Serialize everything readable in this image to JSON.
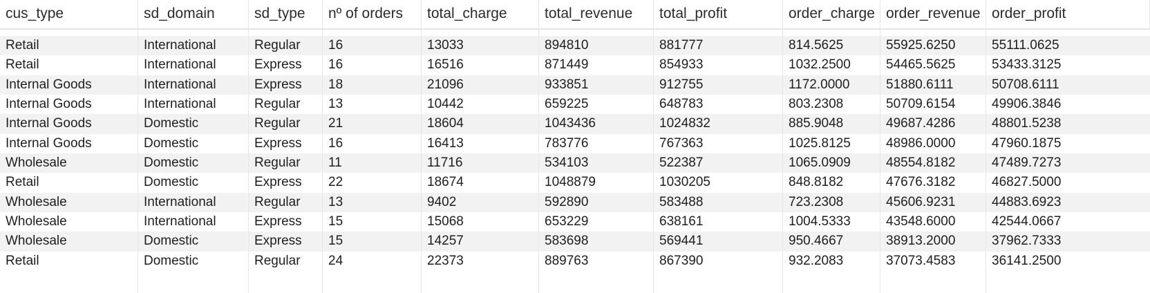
{
  "table": {
    "columns": [
      "cus_type",
      "sd_domain",
      "sd_type",
      "nº of orders",
      "total_charge",
      "total_revenue",
      "total_profit",
      "order_charge",
      "order_revenue",
      "order_profit"
    ],
    "rows": [
      [
        "Retail",
        "International",
        "Regular",
        "16",
        "13033",
        "894810",
        "881777",
        "814.5625",
        "55925.6250",
        "55111.0625"
      ],
      [
        "Retail",
        "International",
        "Express",
        "16",
        "16516",
        "871449",
        "854933",
        "1032.2500",
        "54465.5625",
        "53433.3125"
      ],
      [
        "Internal Goods",
        "International",
        "Express",
        "18",
        "21096",
        "933851",
        "912755",
        "1172.0000",
        "51880.6111",
        "50708.6111"
      ],
      [
        "Internal Goods",
        "International",
        "Regular",
        "13",
        "10442",
        "659225",
        "648783",
        "803.2308",
        "50709.6154",
        "49906.3846"
      ],
      [
        "Internal Goods",
        "Domestic",
        "Regular",
        "21",
        "18604",
        "1043436",
        "1024832",
        "885.9048",
        "49687.4286",
        "48801.5238"
      ],
      [
        "Internal Goods",
        "Domestic",
        "Express",
        "16",
        "16413",
        "783776",
        "767363",
        "1025.8125",
        "48986.0000",
        "47960.1875"
      ],
      [
        "Wholesale",
        "Domestic",
        "Regular",
        "11",
        "11716",
        "534103",
        "522387",
        "1065.0909",
        "48554.8182",
        "47489.7273"
      ],
      [
        "Retail",
        "Domestic",
        "Express",
        "22",
        "18674",
        "1048879",
        "1030205",
        "848.8182",
        "47676.3182",
        "46827.5000"
      ],
      [
        "Wholesale",
        "International",
        "Regular",
        "13",
        "9402",
        "592890",
        "583488",
        "723.2308",
        "45606.9231",
        "44883.6923"
      ],
      [
        "Wholesale",
        "International",
        "Express",
        "15",
        "15068",
        "653229",
        "638161",
        "1004.5333",
        "43548.6000",
        "42544.0667"
      ],
      [
        "Wholesale",
        "Domestic",
        "Express",
        "15",
        "14257",
        "583698",
        "569441",
        "950.4667",
        "38913.2000",
        "37962.7333"
      ],
      [
        "Retail",
        "Domestic",
        "Regular",
        "24",
        "22373",
        "889763",
        "867390",
        "932.2083",
        "37073.4583",
        "36141.2500"
      ]
    ]
  },
  "colors": {
    "row_alt_background": "#f2f2f2",
    "divider": "#e6e6e6"
  }
}
